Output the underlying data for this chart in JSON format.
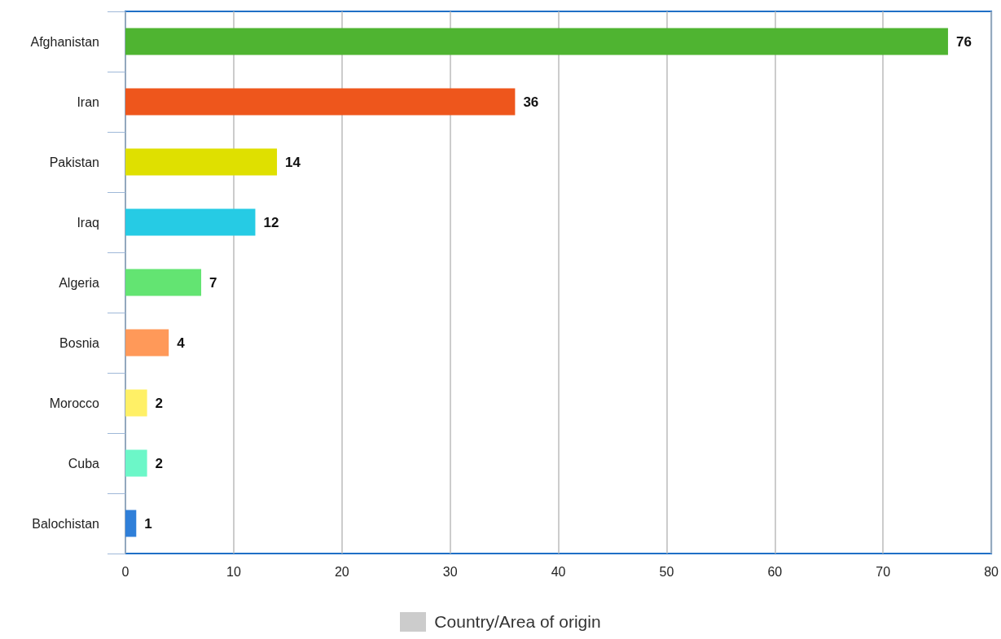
{
  "chart_data": {
    "type": "bar",
    "orientation": "horizontal",
    "categories": [
      "Afghanistan",
      "Iran",
      "Pakistan",
      "Iraq",
      "Algeria",
      "Bosnia",
      "Morocco",
      "Cuba",
      "Balochistan"
    ],
    "series": [
      {
        "name": "Country/Area of origin",
        "color": "#cccccc",
        "colors": [
          "#4fb431",
          "#ee561c",
          "#dfe000",
          "#26cbe4",
          "#63e472",
          "#ff9959",
          "#fff066",
          "#6cf7c8",
          "#2f7fd9"
        ],
        "values": [
          76,
          36,
          14,
          12,
          7,
          4,
          2,
          2,
          1
        ]
      }
    ],
    "xlim": [
      0,
      80
    ],
    "xticks": [
      0,
      10,
      20,
      30,
      40,
      50,
      60,
      70,
      80
    ],
    "grid": "x",
    "data_labels": true,
    "legend": "bottom"
  }
}
